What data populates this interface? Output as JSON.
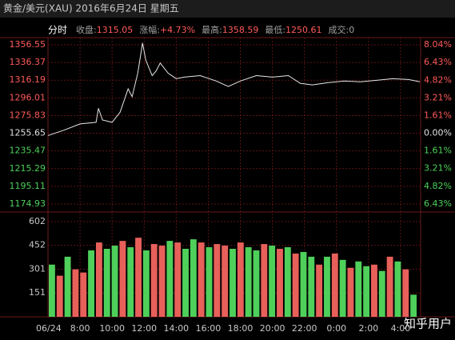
{
  "title": "黄金/美元(XAU) 2016年6月24日 星期五",
  "header": {
    "mode": "分时",
    "fields": [
      {
        "label": "收盘:",
        "value": "1315.05",
        "color": "#ff5a5a"
      },
      {
        "label": "涨幅:",
        "value": "+4.73%",
        "color": "#ff5a5a"
      },
      {
        "label": "最高:",
        "value": "1358.59",
        "color": "#ff5a5a"
      },
      {
        "label": "最低:",
        "value": "1250.61",
        "color": "#ff5a5a"
      },
      {
        "label": "成交:",
        "value": "0",
        "color": "#a0a0a0"
      }
    ]
  },
  "watermark": "知乎用户",
  "chart_data": [
    {
      "type": "line",
      "x": [
        0,
        1,
        2,
        3,
        3.15,
        3.4,
        4,
        4.5,
        5,
        5.25,
        5.6,
        5.9,
        6.1,
        6.5,
        6.75,
        7,
        7.5,
        8,
        8.5,
        9.5,
        10.5,
        11.25,
        12,
        13,
        14,
        15,
        15.75,
        16.5,
        17.5,
        18.5,
        19.5,
        20.5,
        21.5,
        22.5,
        23.2
      ],
      "series": [
        {
          "color": "#e6e6e6",
          "values": [
            1253.0,
            1259.2,
            1266.3,
            1268.1,
            1284.1,
            1270.8,
            1268.1,
            1279.7,
            1306.3,
            1297.4,
            1324.1,
            1358.6,
            1339.2,
            1321.4,
            1326.8,
            1335.7,
            1324.1,
            1317.9,
            1319.7,
            1321.4,
            1315.2,
            1309.0,
            1315.2,
            1321.4,
            1319.7,
            1321.4,
            1312.5,
            1310.8,
            1313.4,
            1315.2,
            1314.3,
            1316.1,
            1317.9,
            1317.0,
            1314.3
          ]
        }
      ],
      "xlim": [
        0,
        23.25
      ],
      "xticks": [
        {
          "value": 0,
          "label": "06/24"
        },
        {
          "value": 2,
          "label": "8:00"
        },
        {
          "value": 4,
          "label": "10:00"
        },
        {
          "value": 6,
          "label": "12:00"
        },
        {
          "value": 8,
          "label": "14:00"
        },
        {
          "value": 10,
          "label": "16:00"
        },
        {
          "value": 12,
          "label": "18:00"
        },
        {
          "value": 14,
          "label": "20:00"
        },
        {
          "value": 16,
          "label": "22:00"
        },
        {
          "value": 18,
          "label": "0:00"
        },
        {
          "value": 20,
          "label": "2:00"
        },
        {
          "value": 22,
          "label": "4:00"
        }
      ],
      "ylim": [
        1174.93,
        1356.55
      ],
      "yticks": [
        1356.55,
        1336.37,
        1316.19,
        1296.01,
        1275.83,
        1255.65,
        1235.47,
        1215.29,
        1195.11,
        1174.93
      ],
      "y2lim": [
        -6.43,
        8.04
      ],
      "y2ticks": [
        {
          "value": 8.04,
          "label": "8.04%"
        },
        {
          "value": 6.43,
          "label": "6.43%"
        },
        {
          "value": 4.82,
          "label": "4.82%"
        },
        {
          "value": 3.21,
          "label": "3.21%"
        },
        {
          "value": 1.61,
          "label": "1.61%"
        },
        {
          "value": 0,
          "label": "0.00%"
        },
        {
          "value": -1.61,
          "label": "1.61%"
        },
        {
          "value": -3.21,
          "label": "3.21%"
        },
        {
          "value": -4.82,
          "label": "4.82%"
        },
        {
          "value": -6.43,
          "label": "6.43%"
        }
      ],
      "up_color": "#ff5a5a",
      "down_color": "#4ed05a",
      "flat_color": "#e0e0e0",
      "grid": true
    },
    {
      "type": "bar",
      "values": [
        330,
        260,
        380,
        300,
        280,
        420,
        470,
        430,
        450,
        480,
        440,
        500,
        420,
        460,
        450,
        480,
        470,
        430,
        490,
        470,
        440,
        460,
        450,
        430,
        470,
        440,
        420,
        460,
        450,
        430,
        440,
        400,
        410,
        380,
        330,
        380,
        400,
        360,
        310,
        350,
        320,
        330,
        290,
        380,
        350,
        300,
        140
      ],
      "colors": [
        "#4ed05a",
        "#e8605a",
        "#4ed05a",
        "#e8605a",
        "#e8605a",
        "#4ed05a",
        "#e8605a",
        "#4ed05a",
        "#4ed05a",
        "#e8605a",
        "#4ed05a",
        "#e8605a",
        "#4ed05a",
        "#e8605a",
        "#e8605a",
        "#4ed05a",
        "#e8605a",
        "#4ed05a",
        "#4ed05a",
        "#e8605a",
        "#4ed05a",
        "#e8605a",
        "#e8605a",
        "#4ed05a",
        "#e8605a",
        "#4ed05a",
        "#4ed05a",
        "#e8605a",
        "#4ed05a",
        "#e8605a",
        "#4ed05a",
        "#e8605a",
        "#4ed05a",
        "#4ed05a",
        "#e8605a",
        "#4ed05a",
        "#e8605a",
        "#4ed05a",
        "#e8605a",
        "#4ed05a",
        "#4ed05a",
        "#e8605a",
        "#4ed05a",
        "#e8605a",
        "#4ed05a",
        "#e8605a",
        "#4ed05a"
      ],
      "ylim": [
        0,
        602
      ],
      "yticks": [
        151,
        301,
        452,
        602
      ],
      "tick_color": "#c8c8c8",
      "grid": true
    }
  ]
}
